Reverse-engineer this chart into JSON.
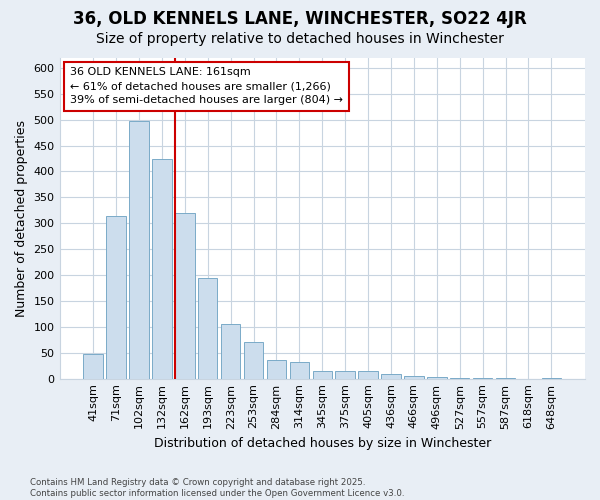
{
  "title": "36, OLD KENNELS LANE, WINCHESTER, SO22 4JR",
  "subtitle": "Size of property relative to detached houses in Winchester",
  "xlabel": "Distribution of detached houses by size in Winchester",
  "ylabel": "Number of detached properties",
  "categories": [
    "41sqm",
    "71sqm",
    "102sqm",
    "132sqm",
    "162sqm",
    "193sqm",
    "223sqm",
    "253sqm",
    "284sqm",
    "314sqm",
    "345sqm",
    "375sqm",
    "405sqm",
    "436sqm",
    "466sqm",
    "496sqm",
    "527sqm",
    "557sqm",
    "587sqm",
    "618sqm",
    "648sqm"
  ],
  "values": [
    47,
    315,
    497,
    425,
    320,
    195,
    105,
    70,
    37,
    33,
    14,
    14,
    14,
    10,
    5,
    4,
    2,
    1,
    1,
    0,
    1
  ],
  "bar_color": "#ccdded",
  "bar_edge_color": "#7aaac8",
  "vline_color": "#cc0000",
  "vline_x_index": 4,
  "annotation_text": "36 OLD KENNELS LANE: 161sqm\n← 61% of detached houses are smaller (1,266)\n39% of semi-detached houses are larger (804) →",
  "annotation_box_color": "#ffffff",
  "annotation_box_edge_color": "#cc0000",
  "fig_background_color": "#e8eef5",
  "plot_bg_color": "#ffffff",
  "grid_color": "#c8d4e0",
  "ylim": [
    0,
    620
  ],
  "yticks": [
    0,
    50,
    100,
    150,
    200,
    250,
    300,
    350,
    400,
    450,
    500,
    550,
    600
  ],
  "footnote": "Contains HM Land Registry data © Crown copyright and database right 2025.\nContains public sector information licensed under the Open Government Licence v3.0.",
  "title_fontsize": 12,
  "subtitle_fontsize": 10,
  "label_fontsize": 9,
  "tick_fontsize": 8,
  "annot_fontsize": 8
}
